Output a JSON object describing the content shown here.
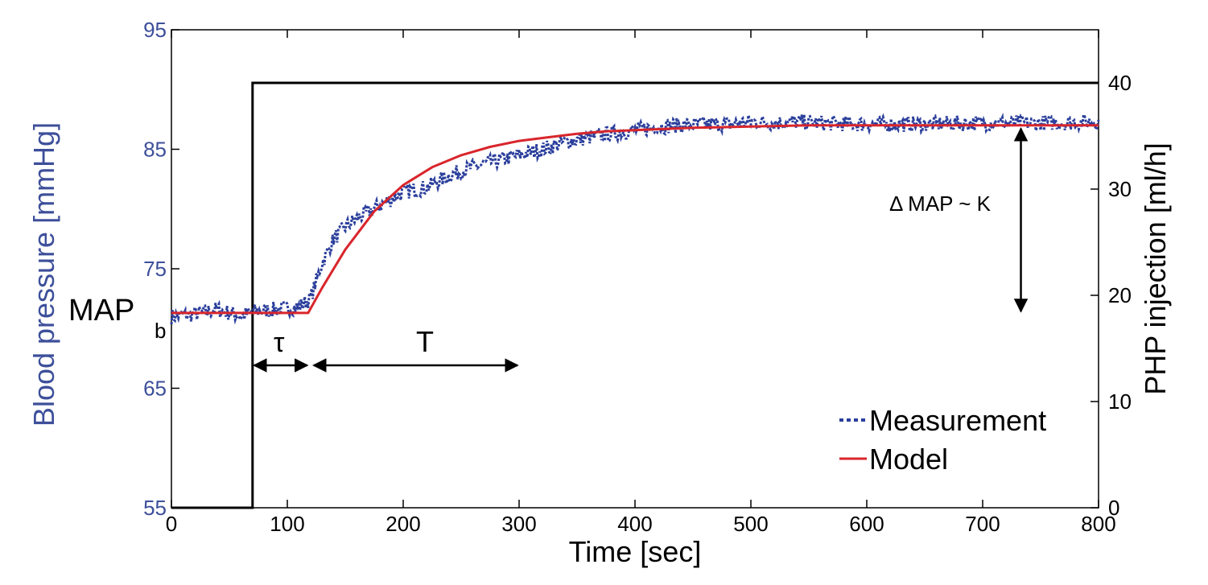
{
  "chart_data": {
    "type": "line",
    "xlabel": "Time [sec]",
    "ylabel_left": "Blood pressure [mmHg]",
    "ylabel_right": "PHP injection [ml/h]",
    "xlim": [
      0,
      800
    ],
    "ylim_left": [
      55,
      95
    ],
    "ylim_right": [
      0,
      45
    ],
    "x_ticks": [
      "0",
      "100",
      "200",
      "300",
      "400",
      "500",
      "600",
      "700",
      "800"
    ],
    "y_left_ticks": [
      "55",
      "65",
      "75",
      "85",
      "95"
    ],
    "y_right_ticks": [
      "0",
      "10",
      "20",
      "30",
      "40"
    ],
    "colors": {
      "measurement": "#2b3f9c",
      "model": "#d9262c",
      "injection": "#000000",
      "left_axis": "#3d4f9a"
    },
    "series": [
      {
        "name": "Measurement",
        "style": "dotted",
        "x": [
          0,
          20,
          40,
          60,
          70,
          90,
          110,
          120,
          130,
          140,
          150,
          160,
          180,
          200,
          220,
          240,
          260,
          280,
          300,
          320,
          340,
          360,
          380,
          400,
          420,
          440,
          460,
          480,
          500,
          520,
          540,
          560,
          600,
          650,
          700,
          750,
          800
        ],
        "y": [
          71.0,
          71.2,
          71.6,
          71.0,
          71.4,
          71.6,
          71.8,
          72.5,
          75.5,
          77.5,
          78.5,
          79.2,
          80.3,
          81.4,
          81.8,
          82.8,
          83.5,
          84.0,
          84.5,
          85.0,
          85.6,
          86.0,
          86.3,
          86.6,
          86.9,
          87.0,
          87.1,
          87.1,
          87.3,
          87.2,
          87.3,
          87.2,
          87.1,
          87.1,
          87.2,
          87.2,
          87.3
        ]
      },
      {
        "name": "Model",
        "style": "solid",
        "x": [
          0,
          20,
          40,
          60,
          80,
          100,
          118,
          130,
          150,
          175,
          200,
          225,
          250,
          275,
          300,
          325,
          350,
          375,
          400,
          450,
          500,
          550,
          600,
          650,
          700,
          750,
          800
        ],
        "y": [
          71.3,
          71.3,
          71.3,
          71.3,
          71.3,
          71.3,
          71.3,
          73.4,
          76.6,
          79.8,
          82.0,
          83.5,
          84.5,
          85.2,
          85.7,
          86.0,
          86.3,
          86.5,
          86.6,
          86.8,
          86.9,
          87.0,
          87.0,
          87.0,
          87.0,
          87.0,
          87.0
        ]
      },
      {
        "name": "PHP injection",
        "axis": "right",
        "style": "step",
        "x": [
          0,
          70,
          70,
          800
        ],
        "y": [
          0,
          0,
          40,
          40
        ]
      }
    ],
    "legend": {
      "placement": "bottom-right",
      "entries": [
        "Measurement",
        "Model"
      ]
    },
    "annotations": {
      "map_label": "MAP",
      "map_subscript": "b",
      "tau_label": "τ",
      "T_label": "T",
      "delta_label": "Δ MAP ~ K",
      "tau_range_x": [
        70,
        120
      ],
      "T_range_x": [
        120,
        300
      ],
      "delta_x": 733,
      "delta_range_y": [
        71.3,
        87.0
      ]
    }
  }
}
